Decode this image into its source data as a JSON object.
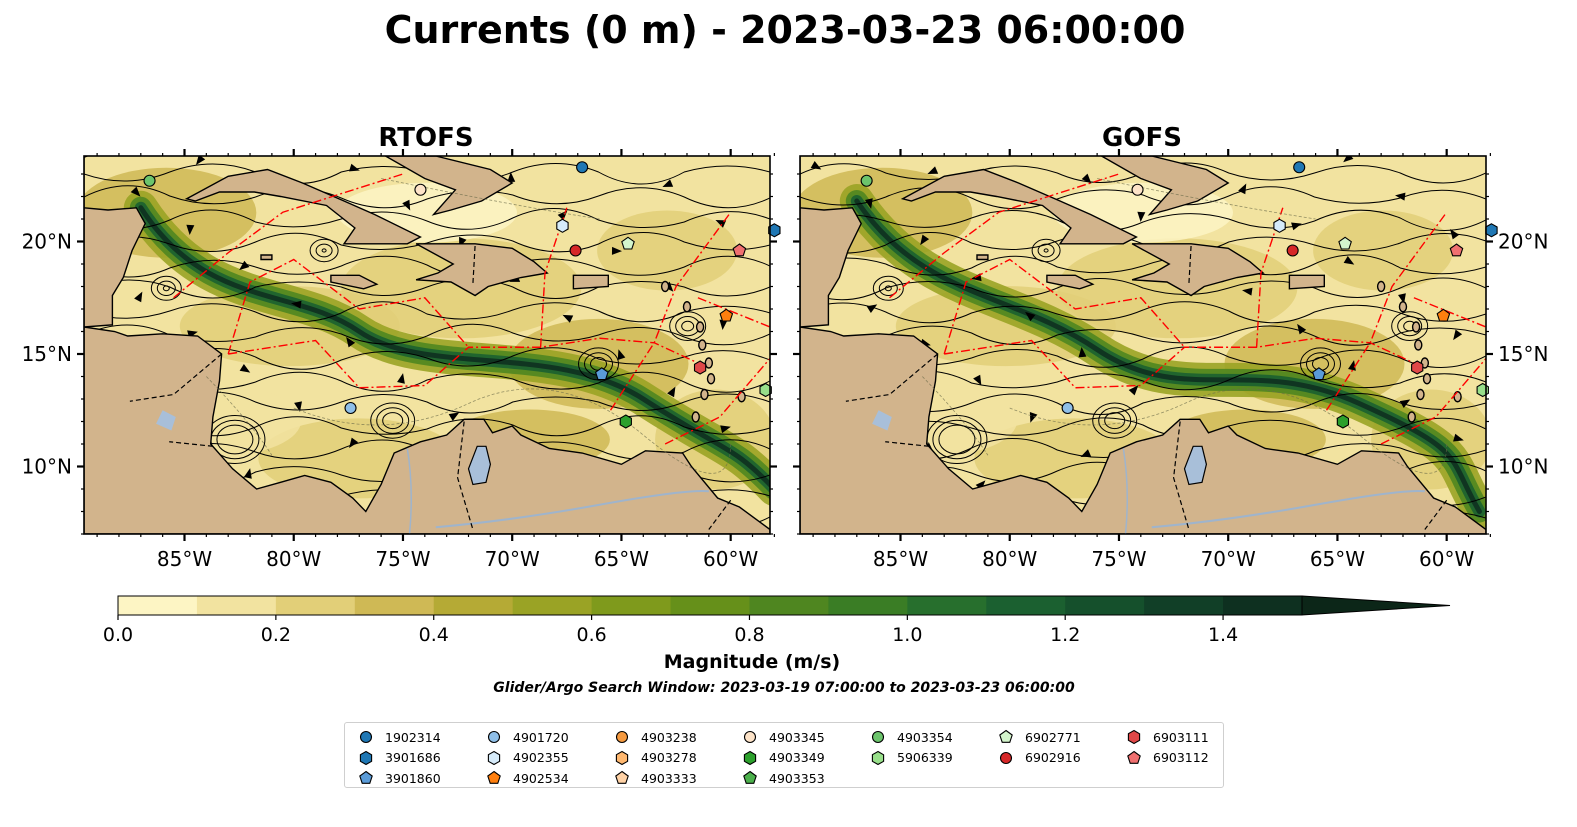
{
  "title": "Currents (0 m) - 2023-03-23 06:00:00",
  "panels": [
    {
      "title": "RTOFS"
    },
    {
      "title": "GOFS"
    }
  ],
  "axes": {
    "lon_ticks": [
      "85°W",
      "80°W",
      "75°W",
      "70°W",
      "65°W",
      "60°W"
    ],
    "lat_ticks": [
      "20°N",
      "15°N",
      "10°N"
    ],
    "lon_range": [
      -89.6,
      -58.2
    ],
    "lat_range": [
      7.0,
      23.8
    ]
  },
  "colorbar": {
    "label": "Magnitude (m/s)",
    "range": [
      0.0,
      1.5
    ],
    "extend": "max",
    "tick_labels": [
      "0.0",
      "0.2",
      "0.4",
      "0.6",
      "0.8",
      "1.0",
      "1.2",
      "1.4"
    ],
    "colors": [
      "#fdf5c4",
      "#f2e3a0",
      "#e2cf78",
      "#cfb955",
      "#b5aa35",
      "#9aa325",
      "#7f9a1c",
      "#66901a",
      "#4f8620",
      "#3a7d25",
      "#276f2d",
      "#1b6030",
      "#15502c",
      "#113f27",
      "#0e3020",
      "#0c2618"
    ]
  },
  "subtitle": "Glider/Argo Search Window: 2023-03-19 07:00:00 to 2023-03-23 06:00:00",
  "map_colors": {
    "land": "#d2b48c",
    "lake": "#a8bfd9",
    "river": "#9fb4cc",
    "eez": "#ff0000",
    "streamline": "#000000",
    "border": "#000000"
  },
  "legend": {
    "columns": [
      [
        {
          "label": "1902314",
          "marker": "circle",
          "color": "#1f77b4"
        },
        {
          "label": "3901686",
          "marker": "hexagon",
          "color": "#1f77b4"
        },
        {
          "label": "3901860",
          "marker": "pentagon",
          "color": "#5a9bd8"
        }
      ],
      [
        {
          "label": "4901720",
          "marker": "circle",
          "color": "#8fbfe8"
        },
        {
          "label": "4902355",
          "marker": "hexagon",
          "color": "#d6ebfa"
        },
        {
          "label": "4902534",
          "marker": "pentagon",
          "color": "#ff7f0e"
        }
      ],
      [
        {
          "label": "4903238",
          "marker": "circle",
          "color": "#f59a40"
        },
        {
          "label": "4903278",
          "marker": "hexagon",
          "color": "#ffb870"
        },
        {
          "label": "4903333",
          "marker": "pentagon",
          "color": "#ffd2a6"
        }
      ],
      [
        {
          "label": "4903345",
          "marker": "circle",
          "color": "#fde3c8"
        },
        {
          "label": "4903349",
          "marker": "hexagon",
          "color": "#2ca02c"
        },
        {
          "label": "4903353",
          "marker": "pentagon",
          "color": "#4cb04c"
        }
      ],
      [
        {
          "label": "4903354",
          "marker": "circle",
          "color": "#6cc46c"
        },
        {
          "label": "5906339",
          "marker": "hexagon",
          "color": "#98df8a"
        }
      ],
      [
        {
          "label": "6902771",
          "marker": "pentagon",
          "color": "#d4f5cc"
        },
        {
          "label": "6902916",
          "marker": "circle",
          "color": "#d62728"
        }
      ],
      [
        {
          "label": "6903111",
          "marker": "hexagon",
          "color": "#e04848"
        },
        {
          "label": "6903112",
          "marker": "pentagon",
          "color": "#f07070"
        }
      ]
    ]
  },
  "floats": [
    {
      "id": "1902314",
      "lon": -66.8,
      "lat": 23.3
    },
    {
      "id": "3901686",
      "lon": -58.0,
      "lat": 20.5
    },
    {
      "id": "4902355",
      "lon": -67.7,
      "lat": 20.7
    },
    {
      "id": "6902916",
      "lon": -67.1,
      "lat": 19.6
    },
    {
      "id": "6902771",
      "lon": -64.7,
      "lat": 19.9
    },
    {
      "id": "6903112",
      "lon": -59.6,
      "lat": 19.6
    },
    {
      "id": "4902534",
      "lon": -60.2,
      "lat": 16.7
    },
    {
      "id": "6903111",
      "lon": -61.4,
      "lat": 14.4
    },
    {
      "id": "3901860",
      "lon": -65.9,
      "lat": 14.1
    },
    {
      "id": "5906339",
      "lon": -58.4,
      "lat": 13.4
    },
    {
      "id": "4901720",
      "lon": -77.4,
      "lat": 12.6
    },
    {
      "id": "4903349",
      "lon": -64.8,
      "lat": 12.0
    },
    {
      "id": "4903354",
      "lon": -86.6,
      "lat": 22.7
    },
    {
      "id": "4903345",
      "lon": -74.2,
      "lat": 22.3
    }
  ]
}
